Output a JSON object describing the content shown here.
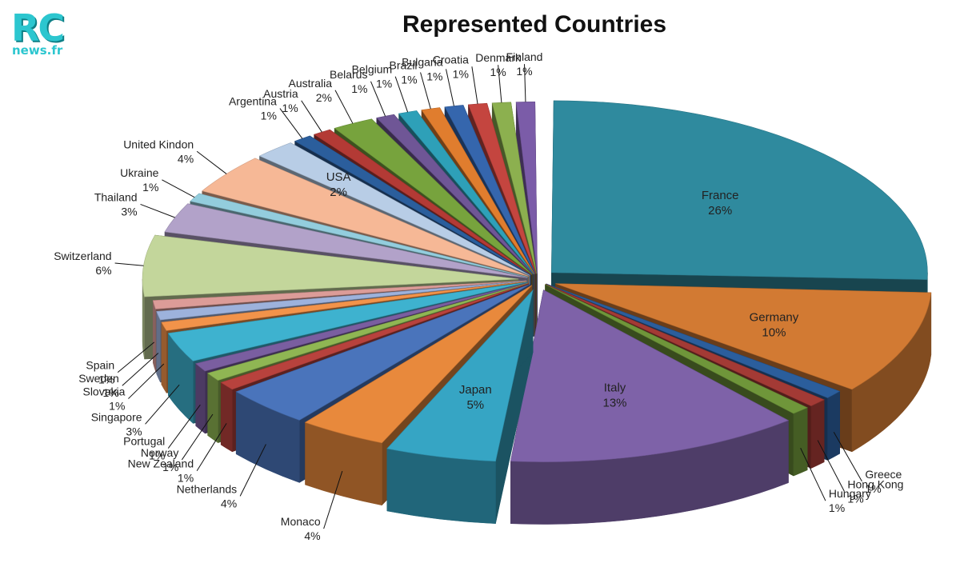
{
  "logo": {
    "mark": "RC",
    "sub": "news.fr"
  },
  "chart_data": {
    "type": "pie",
    "title": "Represented Countries",
    "style": "3d-exploded",
    "slices": [
      {
        "label": "France",
        "display": "26%",
        "value": 26,
        "color": "#2f8a9e",
        "label_mode": "inside"
      },
      {
        "label": "Germany",
        "display": "10%",
        "value": 10,
        "color": "#d27a33",
        "label_mode": "inside"
      },
      {
        "label": "Greece",
        "display": "1%",
        "value": 1,
        "color": "#2b5e9c",
        "label_mode": "outside"
      },
      {
        "label": "Hong Kong",
        "display": "1%",
        "value": 1,
        "color": "#a33a35",
        "label_mode": "outside"
      },
      {
        "label": "Hungary",
        "display": "1%",
        "value": 1,
        "color": "#6f963a",
        "label_mode": "outside"
      },
      {
        "label": "Italy",
        "display": "13%",
        "value": 13,
        "color": "#7e62a8",
        "label_mode": "inside"
      },
      {
        "label": "Japan",
        "display": "5%",
        "value": 5,
        "color": "#36a5c4",
        "label_mode": "inside"
      },
      {
        "label": "Monaco",
        "display": "4%",
        "value": 4,
        "color": "#e8893c",
        "label_mode": "outside"
      },
      {
        "label": "Netherlands",
        "display": "4%",
        "value": 4,
        "color": "#4a74bb",
        "label_mode": "outside"
      },
      {
        "label": "New Zealand",
        "display": "1%",
        "value": 1,
        "color": "#b8423d",
        "label_mode": "outside"
      },
      {
        "label": "Norway",
        "display": "1%",
        "value": 1,
        "color": "#8fb653",
        "label_mode": "outside"
      },
      {
        "label": "Portugal",
        "display": "1%",
        "value": 1,
        "color": "#7a5ea0",
        "label_mode": "outside"
      },
      {
        "label": "Singapore",
        "display": "3%",
        "value": 3,
        "color": "#3eb2cf",
        "label_mode": "outside"
      },
      {
        "label": "Slovakia",
        "display": "1%",
        "value": 1,
        "color": "#f2934a",
        "label_mode": "outside"
      },
      {
        "label": "Sweden",
        "display": "1%",
        "value": 1,
        "color": "#9db2dc",
        "label_mode": "outside"
      },
      {
        "label": "Spain",
        "display": "1%",
        "value": 1,
        "color": "#dc9c98",
        "label_mode": "outside"
      },
      {
        "label": "Switzerland",
        "display": "6%",
        "value": 6,
        "color": "#c3d69b",
        "label_mode": "outside"
      },
      {
        "label": "Thailand",
        "display": "3%",
        "value": 3,
        "color": "#b2a2c9",
        "label_mode": "outside"
      },
      {
        "label": "Ukraine",
        "display": "1%",
        "value": 1,
        "color": "#93cddd",
        "label_mode": "outside"
      },
      {
        "label": "United Kindon",
        "display": "4%",
        "value": 4,
        "color": "#f6b896",
        "label_mode": "outside"
      },
      {
        "label": "USA",
        "display": "2%",
        "value": 2,
        "color": "#b8cde6",
        "label_mode": "inside"
      },
      {
        "label": "Argentina",
        "display": "1%",
        "value": 1,
        "color": "#2b5e9c",
        "label_mode": "outside"
      },
      {
        "label": "Austria",
        "display": "1%",
        "value": 1,
        "color": "#b33a35",
        "label_mode": "outside"
      },
      {
        "label": "Australia",
        "display": "2%",
        "value": 2,
        "color": "#77a33d",
        "label_mode": "outside"
      },
      {
        "label": "Belarus",
        "display": "1%",
        "value": 1,
        "color": "#6f5696",
        "label_mode": "outside"
      },
      {
        "label": "Belgium",
        "display": "1%",
        "value": 1,
        "color": "#2ea0b8",
        "label_mode": "outside"
      },
      {
        "label": "Brazil",
        "display": "1%",
        "value": 1,
        "color": "#e07d2e",
        "label_mode": "outside"
      },
      {
        "label": "Bulgaria",
        "display": "1%",
        "value": 1,
        "color": "#3566ad",
        "label_mode": "outside"
      },
      {
        "label": "Croatia",
        "display": "1%",
        "value": 1,
        "color": "#c4453f",
        "label_mode": "outside"
      },
      {
        "label": "Denmark",
        "display": "1%",
        "value": 1,
        "color": "#8cb04f",
        "label_mode": "outside"
      },
      {
        "label": "Finland",
        "display": "1%",
        "value": 1,
        "color": "#7b5ca8",
        "label_mode": "outside"
      }
    ]
  }
}
